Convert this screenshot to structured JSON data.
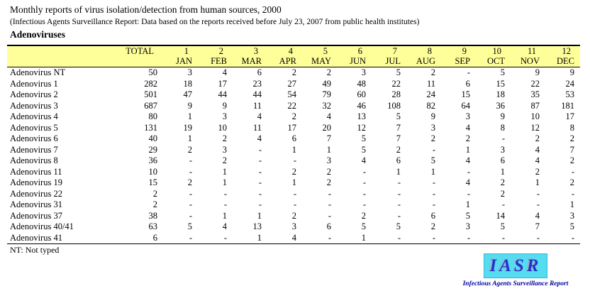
{
  "page": {
    "title": "Monthly reports of virus isolation/detection from human sources, 2000",
    "subtitle": "(Infectious Agents Surveillance Report: Data based on the reports received before July 23, 2007 from public health institutes)",
    "section": "Adenoviruses"
  },
  "table": {
    "total_label": "TOTAL",
    "months": [
      {
        "num": "1",
        "abbr": "JAN"
      },
      {
        "num": "2",
        "abbr": "FEB"
      },
      {
        "num": "3",
        "abbr": "MAR"
      },
      {
        "num": "4",
        "abbr": "APR"
      },
      {
        "num": "5",
        "abbr": "MAY"
      },
      {
        "num": "6",
        "abbr": "JUN"
      },
      {
        "num": "7",
        "abbr": "JUL"
      },
      {
        "num": "8",
        "abbr": "AUG"
      },
      {
        "num": "9",
        "abbr": "SEP"
      },
      {
        "num": "10",
        "abbr": "OCT"
      },
      {
        "num": "11",
        "abbr": "NOV"
      },
      {
        "num": "12",
        "abbr": "DEC"
      }
    ],
    "rows": [
      {
        "label": "Adenovirus NT",
        "total": "50",
        "values": [
          "3",
          "4",
          "6",
          "2",
          "2",
          "3",
          "5",
          "2",
          "-",
          "5",
          "9",
          "9"
        ]
      },
      {
        "label": "Adenovirus 1",
        "total": "282",
        "values": [
          "18",
          "17",
          "23",
          "27",
          "49",
          "48",
          "22",
          "11",
          "6",
          "15",
          "22",
          "24"
        ]
      },
      {
        "label": "Adenovirus 2",
        "total": "501",
        "values": [
          "47",
          "44",
          "44",
          "54",
          "79",
          "60",
          "28",
          "24",
          "15",
          "18",
          "35",
          "53"
        ]
      },
      {
        "label": "Adenovirus 3",
        "total": "687",
        "values": [
          "9",
          "9",
          "11",
          "22",
          "32",
          "46",
          "108",
          "82",
          "64",
          "36",
          "87",
          "181"
        ]
      },
      {
        "label": "Adenovirus 4",
        "total": "80",
        "values": [
          "1",
          "3",
          "4",
          "2",
          "4",
          "13",
          "5",
          "9",
          "3",
          "9",
          "10",
          "17"
        ]
      },
      {
        "label": "Adenovirus 5",
        "total": "131",
        "values": [
          "19",
          "10",
          "11",
          "17",
          "20",
          "12",
          "7",
          "3",
          "4",
          "8",
          "12",
          "8"
        ]
      },
      {
        "label": "Adenovirus 6",
        "total": "40",
        "values": [
          "1",
          "2",
          "4",
          "6",
          "7",
          "5",
          "7",
          "2",
          "2",
          "-",
          "2",
          "2"
        ]
      },
      {
        "label": "Adenovirus 7",
        "total": "29",
        "values": [
          "2",
          "3",
          "-",
          "1",
          "1",
          "5",
          "2",
          "-",
          "1",
          "3",
          "4",
          "7"
        ]
      },
      {
        "label": "Adenovirus 8",
        "total": "36",
        "values": [
          "-",
          "2",
          "-",
          "-",
          "3",
          "4",
          "6",
          "5",
          "4",
          "6",
          "4",
          "2"
        ]
      },
      {
        "label": "Adenovirus 11",
        "total": "10",
        "values": [
          "-",
          "1",
          "-",
          "2",
          "2",
          "-",
          "1",
          "1",
          "-",
          "1",
          "2",
          "-"
        ]
      },
      {
        "label": "Adenovirus 19",
        "total": "15",
        "values": [
          "2",
          "1",
          "-",
          "1",
          "2",
          "-",
          "-",
          "-",
          "4",
          "2",
          "1",
          "2"
        ]
      },
      {
        "label": "Adenovirus 22",
        "total": "2",
        "values": [
          "-",
          "-",
          "-",
          "-",
          "-",
          "-",
          "-",
          "-",
          "-",
          "2",
          "-",
          "-"
        ]
      },
      {
        "label": "Adenovirus 31",
        "total": "2",
        "values": [
          "-",
          "-",
          "-",
          "-",
          "-",
          "-",
          "-",
          "-",
          "1",
          "-",
          "-",
          "1"
        ]
      },
      {
        "label": "Adenovirus 37",
        "total": "38",
        "values": [
          "-",
          "1",
          "1",
          "2",
          "-",
          "2",
          "-",
          "6",
          "5",
          "14",
          "4",
          "3"
        ]
      },
      {
        "label": "Adenovirus 40/41",
        "total": "63",
        "values": [
          "5",
          "4",
          "13",
          "3",
          "6",
          "5",
          "5",
          "2",
          "3",
          "5",
          "7",
          "5"
        ]
      },
      {
        "label": "Adenovirus 41",
        "total": "6",
        "values": [
          "-",
          "-",
          "1",
          "4",
          "-",
          "1",
          "-",
          "-",
          "-",
          "-",
          "-",
          "-"
        ]
      }
    ]
  },
  "footer": {
    "note": "NT: Not typed"
  },
  "logo": {
    "acronym": "IASR",
    "caption": "Infectious Agents Surveillance Report",
    "box_color": "#55DCF0",
    "acronym_color": "#2233CC",
    "caption_color": "#0000A0",
    "header_band_color": "#FFFF99"
  }
}
